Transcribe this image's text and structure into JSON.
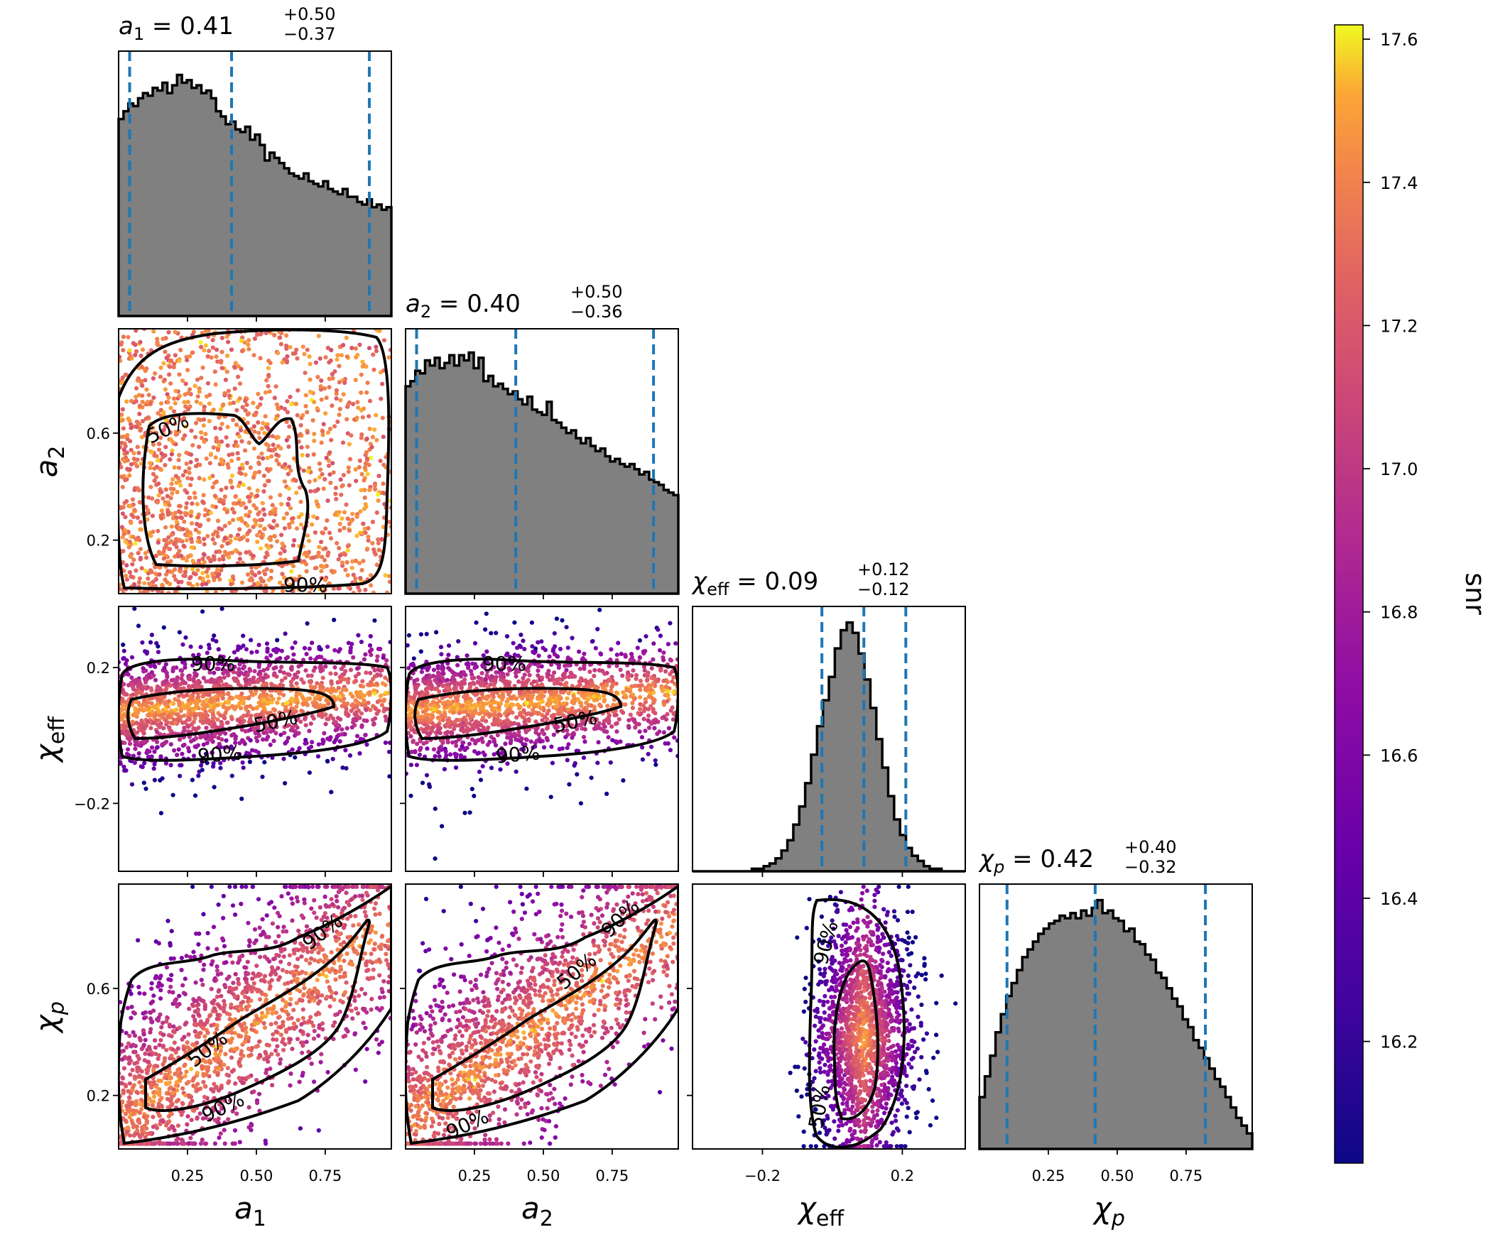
{
  "chart_data": {
    "type": "corner",
    "colorbar": {
      "label": "snr",
      "colormap": "plasma",
      "range": [
        16.03,
        17.62
      ],
      "ticks": [
        "16.2",
        "16.4",
        "16.6",
        "16.8",
        "17.0",
        "17.2",
        "17.4",
        "17.6"
      ],
      "tick_values": [
        16.2,
        16.4,
        16.6,
        16.8,
        17.0,
        17.2,
        17.4,
        17.6
      ]
    },
    "parameters": [
      {
        "key": "a1",
        "symbol": "a",
        "sub": "1",
        "italic_sub": false,
        "range": [
          0.0,
          0.99
        ],
        "ticks": [
          "0.25",
          "0.50",
          "0.75"
        ],
        "tick_values": [
          0.25,
          0.5,
          0.75
        ],
        "median": 0.41,
        "plus": "+0.50",
        "minus": "−0.37",
        "median_label": "0.41",
        "quantiles": [
          0.04,
          0.41,
          0.91
        ],
        "hist": [
          0.76,
          0.79,
          0.82,
          0.81,
          0.84,
          0.86,
          0.85,
          0.88,
          0.87,
          0.9,
          0.86,
          0.89,
          0.93,
          0.9,
          0.91,
          0.88,
          0.89,
          0.86,
          0.87,
          0.84,
          0.79,
          0.77,
          0.74,
          0.75,
          0.72,
          0.71,
          0.73,
          0.68,
          0.7,
          0.66,
          0.6,
          0.63,
          0.61,
          0.59,
          0.57,
          0.55,
          0.54,
          0.53,
          0.55,
          0.52,
          0.51,
          0.5,
          0.52,
          0.49,
          0.48,
          0.47,
          0.49,
          0.46,
          0.46,
          0.44,
          0.43,
          0.45,
          0.42,
          0.43,
          0.41,
          0.42
        ]
      },
      {
        "key": "a2",
        "symbol": "a",
        "sub": "2",
        "italic_sub": false,
        "range": [
          0.0,
          0.99
        ],
        "ticks": [
          "0.2",
          "0.6"
        ],
        "tick_values": [
          0.2,
          0.6
        ],
        "bottom_ticks": [
          "0.25",
          "0.50",
          "0.75"
        ],
        "bottom_tick_values": [
          0.25,
          0.5,
          0.75
        ],
        "median": 0.4,
        "plus": "+0.50",
        "minus": "−0.36",
        "median_label": "0.40",
        "quantiles": [
          0.04,
          0.4,
          0.9
        ],
        "hist": [
          0.8,
          0.82,
          0.86,
          0.85,
          0.9,
          0.88,
          0.91,
          0.87,
          0.89,
          0.92,
          0.88,
          0.92,
          0.9,
          0.93,
          0.87,
          0.91,
          0.82,
          0.84,
          0.8,
          0.81,
          0.79,
          0.77,
          0.78,
          0.75,
          0.73,
          0.76,
          0.71,
          0.7,
          0.69,
          0.74,
          0.67,
          0.66,
          0.64,
          0.62,
          0.63,
          0.6,
          0.58,
          0.6,
          0.57,
          0.55,
          0.56,
          0.53,
          0.51,
          0.52,
          0.5,
          0.49,
          0.5,
          0.48,
          0.46,
          0.47,
          0.44,
          0.43,
          0.42,
          0.4,
          0.39,
          0.38
        ]
      },
      {
        "key": "chi_eff",
        "symbol": "χ",
        "sub": "eff",
        "italic_sub": false,
        "range": [
          -0.4,
          0.38
        ],
        "ticks": [
          "−0.2",
          "0.2"
        ],
        "tick_values": [
          -0.2,
          0.2
        ],
        "median": 0.09,
        "plus": "+0.12",
        "minus": "−0.12",
        "median_label": "0.09",
        "quantiles": [
          -0.03,
          0.09,
          0.21
        ],
        "hist": [
          0.0,
          0.0,
          0.0,
          0.0,
          0.0,
          0.0,
          0.0,
          0.0,
          0.0,
          0.0,
          0.01,
          0.01,
          0.02,
          0.03,
          0.05,
          0.08,
          0.12,
          0.18,
          0.25,
          0.34,
          0.45,
          0.56,
          0.66,
          0.75,
          0.86,
          0.93,
          0.96,
          0.92,
          0.84,
          0.74,
          0.63,
          0.51,
          0.4,
          0.29,
          0.2,
          0.14,
          0.09,
          0.06,
          0.04,
          0.02,
          0.01,
          0.01,
          0.0,
          0.0,
          0.0,
          0.0
        ]
      },
      {
        "key": "chi_p",
        "symbol": "χ",
        "sub": "p",
        "italic_sub": true,
        "range": [
          0.0,
          0.99
        ],
        "ticks": [
          "0.2",
          "0.6"
        ],
        "tick_values": [
          0.2,
          0.6
        ],
        "bottom_ticks": [
          "0.25",
          "0.50",
          "0.75"
        ],
        "bottom_tick_values": [
          0.25,
          0.5,
          0.75
        ],
        "median": 0.42,
        "plus": "+0.40",
        "minus": "−0.32",
        "median_label": "0.42",
        "quantiles": [
          0.1,
          0.42,
          0.82
        ],
        "hist": [
          0.2,
          0.28,
          0.36,
          0.45,
          0.52,
          0.59,
          0.64,
          0.69,
          0.74,
          0.77,
          0.8,
          0.83,
          0.85,
          0.87,
          0.88,
          0.9,
          0.89,
          0.91,
          0.89,
          0.92,
          0.9,
          0.93,
          0.96,
          0.91,
          0.92,
          0.89,
          0.88,
          0.84,
          0.85,
          0.8,
          0.79,
          0.75,
          0.73,
          0.68,
          0.66,
          0.62,
          0.58,
          0.55,
          0.5,
          0.47,
          0.42,
          0.39,
          0.35,
          0.31,
          0.27,
          0.24,
          0.2,
          0.16,
          0.12,
          0.09,
          0.06
        ]
      }
    ],
    "contour_labels": [
      "50%",
      "90%"
    ]
  }
}
